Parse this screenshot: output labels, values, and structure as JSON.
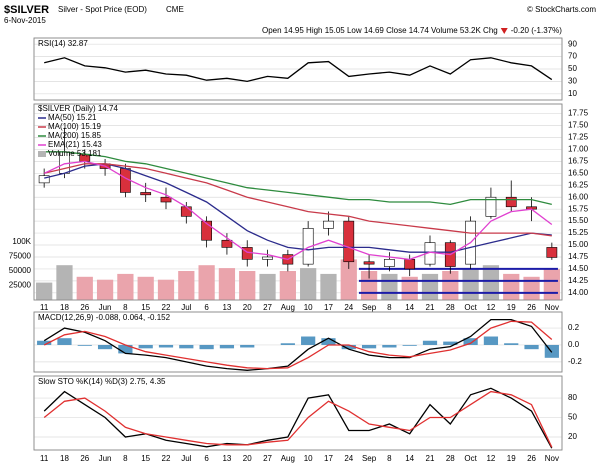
{
  "header": {
    "symbol": "$SILVER",
    "name": "Silver - Spot Price (EOD)",
    "exchange": "CME",
    "date": "6-Nov-2015",
    "source": "© StockCharts.com",
    "quote": "Open 14.95 High 15.05 Low 14.69 Close 14.74 Volume 53.2K Chg",
    "change": "-0.20 (-1.37%)"
  },
  "chart_data": [
    {
      "type": "line",
      "label": "RSI(14) 32.87",
      "ylim": [
        0,
        100
      ],
      "yticks": [
        90,
        70,
        50,
        30,
        10
      ],
      "grid": true,
      "series": [
        {
          "color": "#000000",
          "values": [
            60,
            68,
            55,
            52,
            45,
            48,
            42,
            40,
            32,
            35,
            30,
            38,
            35,
            60,
            62,
            38,
            42,
            45,
            40,
            55,
            42,
            65,
            68,
            60,
            55,
            32.87
          ]
        }
      ]
    },
    {
      "type": "candlestick",
      "name": "$SILVER (Daily) 14.74",
      "categories": [
        "11",
        "18",
        "26",
        "Jun",
        "8",
        "15",
        "22",
        "Jul",
        "6",
        "13",
        "20",
        "27",
        "Aug",
        "10",
        "17",
        "24",
        "Sep",
        "8",
        "14",
        "21",
        "28",
        "Oct",
        "12",
        "19",
        "26",
        "Nov"
      ],
      "open": [
        16.3,
        16.5,
        16.9,
        16.7,
        16.6,
        16.1,
        16.0,
        15.8,
        15.5,
        15.1,
        14.95,
        14.7,
        14.8,
        14.6,
        15.35,
        15.5,
        14.65,
        14.55,
        14.7,
        14.6,
        15.05,
        14.6,
        15.6,
        16.0,
        15.8,
        14.95
      ],
      "high": [
        16.6,
        17.45,
        17.0,
        16.8,
        16.7,
        16.3,
        16.2,
        15.9,
        15.6,
        15.25,
        15.1,
        14.9,
        14.9,
        15.5,
        15.7,
        15.6,
        14.8,
        14.85,
        14.8,
        15.2,
        15.1,
        15.6,
        16.2,
        16.35,
        16.0,
        15.05
      ],
      "low": [
        16.2,
        16.4,
        16.6,
        16.45,
        16.0,
        15.9,
        15.75,
        15.45,
        14.95,
        14.8,
        14.55,
        14.55,
        14.45,
        14.55,
        15.2,
        14.5,
        14.3,
        14.45,
        14.35,
        14.55,
        14.4,
        14.5,
        15.55,
        15.7,
        15.5,
        14.69
      ],
      "close": [
        16.45,
        16.95,
        16.75,
        16.6,
        16.1,
        16.05,
        15.9,
        15.6,
        15.1,
        14.95,
        14.7,
        14.75,
        14.6,
        15.35,
        15.5,
        14.65,
        14.6,
        14.7,
        14.5,
        15.05,
        14.55,
        15.5,
        16.0,
        15.8,
        15.75,
        14.74
      ],
      "colors": {
        "up": "#ffffff",
        "down": "#d8303c",
        "outline": "#000000"
      },
      "ylim": [
        13.85,
        17.95
      ],
      "yticks": [
        {
          "value": 14.0,
          "label": "14.00"
        },
        14.25,
        {
          "value": 14.5,
          "label": "14.50"
        },
        14.75,
        {
          "value": 15.0,
          "label": "15.00"
        },
        15.25,
        {
          "value": 15.5,
          "label": "15.50"
        },
        15.75,
        {
          "value": 16.0,
          "label": "16.00"
        },
        16.25,
        {
          "value": 16.5,
          "label": "16.50"
        },
        16.75,
        {
          "value": 17.0,
          "label": "17.00"
        },
        17.25,
        {
          "value": 17.5,
          "label": "17.50"
        },
        17.75
      ],
      "grid": true,
      "series": [
        {
          "name": "MA(50) 15.21",
          "color": "#2b2b8c",
          "values": [
            16.4,
            16.5,
            16.65,
            16.7,
            16.6,
            16.45,
            16.3,
            16.1,
            15.9,
            15.6,
            15.3,
            15.1,
            14.95,
            14.9,
            14.95,
            14.95,
            14.95,
            14.9,
            14.85,
            14.85,
            14.85,
            14.95,
            15.05,
            15.15,
            15.25,
            15.21
          ]
        },
        {
          "name": "MA(100) 15.19",
          "color": "#c83a4a",
          "values": [
            16.5,
            16.6,
            16.7,
            16.7,
            16.65,
            16.6,
            16.5,
            16.4,
            16.3,
            16.15,
            16.0,
            15.9,
            15.8,
            15.7,
            15.65,
            15.6,
            15.5,
            15.45,
            15.4,
            15.35,
            15.3,
            15.25,
            15.25,
            15.25,
            15.25,
            15.19
          ]
        },
        {
          "name": "MA(200) 15.85",
          "color": "#2e8b3e",
          "values": [
            16.95,
            16.95,
            16.9,
            16.85,
            16.75,
            16.7,
            16.6,
            16.5,
            16.4,
            16.3,
            16.2,
            16.15,
            16.1,
            16.05,
            16.0,
            15.95,
            15.95,
            15.9,
            15.9,
            15.9,
            15.85,
            15.95,
            15.95,
            15.95,
            15.95,
            15.85
          ]
        },
        {
          "name": "EMA(21) 15.43",
          "color": "#e040d0",
          "values": [
            16.5,
            16.7,
            16.75,
            16.65,
            16.4,
            16.2,
            16.05,
            15.8,
            15.45,
            15.15,
            14.85,
            14.8,
            14.7,
            14.95,
            15.1,
            14.95,
            14.8,
            14.75,
            14.7,
            14.85,
            14.8,
            15.05,
            15.5,
            15.7,
            15.75,
            15.43
          ]
        }
      ],
      "volume": {
        "name": "Volume 53,181",
        "color_up": "#b4b4b4",
        "color_down": "#eaa4ac",
        "values": [
          30000,
          60000,
          40000,
          35000,
          45000,
          40000,
          35000,
          50000,
          60000,
          55000,
          50000,
          45000,
          50000,
          55000,
          45000,
          70000,
          50000,
          45000,
          40000,
          45000,
          50000,
          55000,
          60000,
          45000,
          40000,
          53181
        ],
        "ylim": [
          0,
          100000
        ],
        "yticks": [
          {
            "value": 100000,
            "label": "100K"
          },
          75000,
          50000,
          25000
        ]
      },
      "hlines": {
        "color": "#1c1ca8",
        "values": [
          14.5,
          14.25,
          14.0
        ]
      }
    },
    {
      "type": "line",
      "label": "MACD(12,26,9) -0.088, 0.064, -0.152",
      "ylim": [
        -0.32,
        0.39
      ],
      "yticks": [
        0.2,
        {
          "value": 0,
          "label": "0.0"
        },
        -0.2
      ],
      "grid": true,
      "histogram": {
        "color": "#3a86b8",
        "values": [
          0.05,
          0.08,
          -0.01,
          -0.05,
          -0.1,
          -0.04,
          -0.03,
          -0.04,
          -0.05,
          -0.04,
          -0.03,
          0.0,
          0.02,
          0.1,
          0.08,
          -0.05,
          -0.04,
          -0.03,
          -0.01,
          0.05,
          0.04,
          0.08,
          0.1,
          0.02,
          -0.05,
          -0.152
        ]
      },
      "series": [
        {
          "color": "#000000",
          "values": [
            0.05,
            0.2,
            0.15,
            0.05,
            -0.1,
            -0.12,
            -0.15,
            -0.2,
            -0.25,
            -0.28,
            -0.3,
            -0.28,
            -0.25,
            -0.05,
            0.08,
            -0.05,
            -0.12,
            -0.15,
            -0.15,
            -0.05,
            -0.02,
            0.1,
            0.3,
            0.3,
            0.22,
            -0.088
          ]
        },
        {
          "color": "#e03030",
          "values": [
            0.0,
            0.12,
            0.16,
            0.1,
            0.0,
            -0.08,
            -0.12,
            -0.16,
            -0.2,
            -0.24,
            -0.27,
            -0.28,
            -0.27,
            -0.15,
            0.0,
            0.0,
            -0.08,
            -0.12,
            -0.14,
            -0.1,
            -0.06,
            0.02,
            0.2,
            0.28,
            0.27,
            0.064
          ]
        }
      ]
    },
    {
      "type": "line",
      "label": "Slow STO %K(14) %D(3) 2.75, 4.35",
      "ylim": [
        0,
        114
      ],
      "yticks": [
        80,
        50,
        20
      ],
      "grid": true,
      "series": [
        {
          "color": "#000000",
          "values": [
            60,
            90,
            70,
            50,
            20,
            25,
            15,
            10,
            5,
            10,
            8,
            15,
            20,
            80,
            85,
            30,
            30,
            40,
            25,
            70,
            40,
            85,
            95,
            80,
            60,
            2.75
          ]
        },
        {
          "color": "#e03030",
          "values": [
            50,
            75,
            80,
            60,
            35,
            25,
            20,
            15,
            10,
            8,
            8,
            12,
            15,
            50,
            75,
            60,
            40,
            35,
            30,
            50,
            50,
            70,
            90,
            85,
            70,
            4.35
          ]
        }
      ]
    }
  ]
}
